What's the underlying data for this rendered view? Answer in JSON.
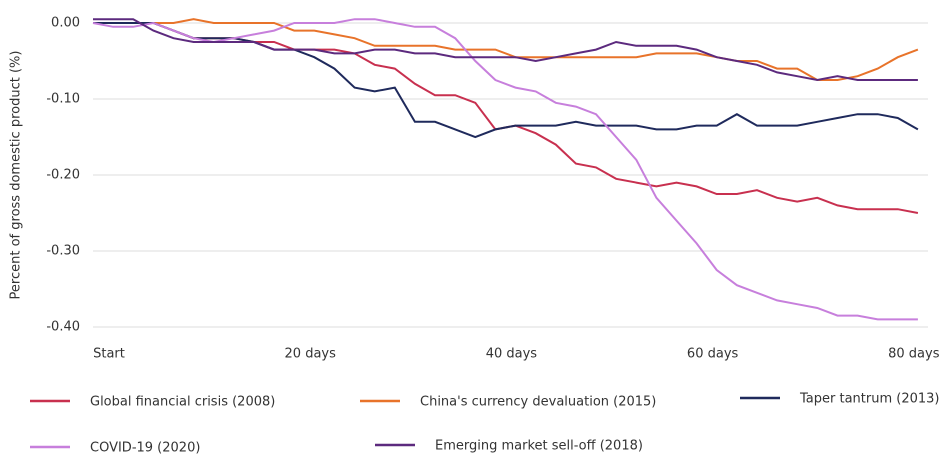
{
  "chart_data": {
    "type": "line",
    "y_label": "Percent of gross domestic product (%)",
    "x": [
      0,
      2,
      4,
      6,
      8,
      10,
      12,
      14,
      16,
      18,
      20,
      22,
      24,
      26,
      28,
      30,
      32,
      34,
      36,
      38,
      40,
      42,
      44,
      46,
      48,
      50,
      52,
      54,
      56,
      58,
      60,
      62,
      64,
      66,
      68,
      70,
      72,
      74,
      76,
      78,
      80,
      82
    ],
    "xlim": [
      0,
      83
    ],
    "xticks": [
      {
        "value": 0,
        "label": "Start"
      },
      {
        "value": 20,
        "label": "20 days"
      },
      {
        "value": 40,
        "label": "40 days"
      },
      {
        "value": 60,
        "label": "60 days"
      },
      {
        "value": 80,
        "label": "80 days"
      }
    ],
    "ylim": [
      -0.4,
      0.01
    ],
    "yticks": [
      {
        "value": 0,
        "label": "0.00"
      },
      {
        "value": -0.1,
        "label": "-0.10"
      },
      {
        "value": -0.2,
        "label": "-0.20"
      },
      {
        "value": -0.3,
        "label": "-0.30"
      },
      {
        "value": -0.4,
        "label": "-0.40"
      }
    ],
    "grid": true,
    "series": [
      {
        "name": "Global financial crisis (2008)",
        "color": "#c8304f",
        "values": [
          0,
          0,
          0,
          0,
          -0.01,
          -0.02,
          -0.02,
          -0.02,
          -0.025,
          -0.025,
          -0.035,
          -0.035,
          -0.035,
          -0.04,
          -0.055,
          -0.06,
          -0.08,
          -0.095,
          -0.095,
          -0.105,
          -0.14,
          -0.135,
          -0.145,
          -0.16,
          -0.185,
          -0.19,
          -0.205,
          -0.21,
          -0.215,
          -0.21,
          -0.215,
          -0.225,
          -0.225,
          -0.22,
          -0.23,
          -0.235,
          -0.23,
          -0.24,
          -0.245,
          -0.245,
          -0.245,
          -0.25
        ]
      },
      {
        "name": "China's currency devaluation (2015)",
        "color": "#e8732a",
        "values": [
          0,
          0,
          0,
          0,
          0,
          0.005,
          0,
          0,
          0,
          0,
          -0.01,
          -0.01,
          -0.015,
          -0.02,
          -0.03,
          -0.03,
          -0.03,
          -0.03,
          -0.035,
          -0.035,
          -0.035,
          -0.045,
          -0.045,
          -0.045,
          -0.045,
          -0.045,
          -0.045,
          -0.045,
          -0.04,
          -0.04,
          -0.04,
          -0.045,
          -0.05,
          -0.05,
          -0.06,
          -0.06,
          -0.075,
          -0.075,
          -0.07,
          -0.06,
          -0.045,
          -0.035
        ]
      },
      {
        "name": "Taper tantrum (2013)",
        "color": "#1f2a5c",
        "values": [
          0,
          0,
          0,
          0,
          -0.01,
          -0.02,
          -0.02,
          -0.02,
          -0.025,
          -0.035,
          -0.035,
          -0.045,
          -0.06,
          -0.085,
          -0.09,
          -0.085,
          -0.13,
          -0.13,
          -0.14,
          -0.15,
          -0.14,
          -0.135,
          -0.135,
          -0.135,
          -0.13,
          -0.135,
          -0.135,
          -0.135,
          -0.14,
          -0.14,
          -0.135,
          -0.135,
          -0.12,
          -0.135,
          -0.135,
          -0.135,
          -0.13,
          -0.125,
          -0.12,
          -0.12,
          -0.125,
          -0.14
        ]
      },
      {
        "name": "COVID-19 (2020)",
        "color": "#c77fdc",
        "values": [
          0,
          -0.005,
          -0.005,
          0,
          -0.01,
          -0.02,
          -0.025,
          -0.02,
          -0.015,
          -0.01,
          0,
          0,
          0,
          0.005,
          0.005,
          0,
          -0.005,
          -0.005,
          -0.02,
          -0.05,
          -0.075,
          -0.085,
          -0.09,
          -0.105,
          -0.11,
          -0.12,
          -0.15,
          -0.18,
          -0.23,
          -0.26,
          -0.29,
          -0.325,
          -0.345,
          -0.355,
          -0.365,
          -0.37,
          -0.375,
          -0.385,
          -0.385,
          -0.39,
          -0.39,
          -0.39
        ]
      },
      {
        "name": "Emerging market sell-off (2018)",
        "color": "#5c2a7e",
        "values": [
          0.005,
          0.005,
          0.005,
          -0.01,
          -0.02,
          -0.025,
          -0.025,
          -0.025,
          -0.025,
          -0.035,
          -0.035,
          -0.035,
          -0.04,
          -0.04,
          -0.035,
          -0.035,
          -0.04,
          -0.04,
          -0.045,
          -0.045,
          -0.045,
          -0.045,
          -0.05,
          -0.045,
          -0.04,
          -0.035,
          -0.025,
          -0.03,
          -0.03,
          -0.03,
          -0.035,
          -0.045,
          -0.05,
          -0.055,
          -0.065,
          -0.07,
          -0.075,
          -0.07,
          -0.075,
          -0.075,
          -0.075,
          -0.075
        ]
      }
    ]
  }
}
